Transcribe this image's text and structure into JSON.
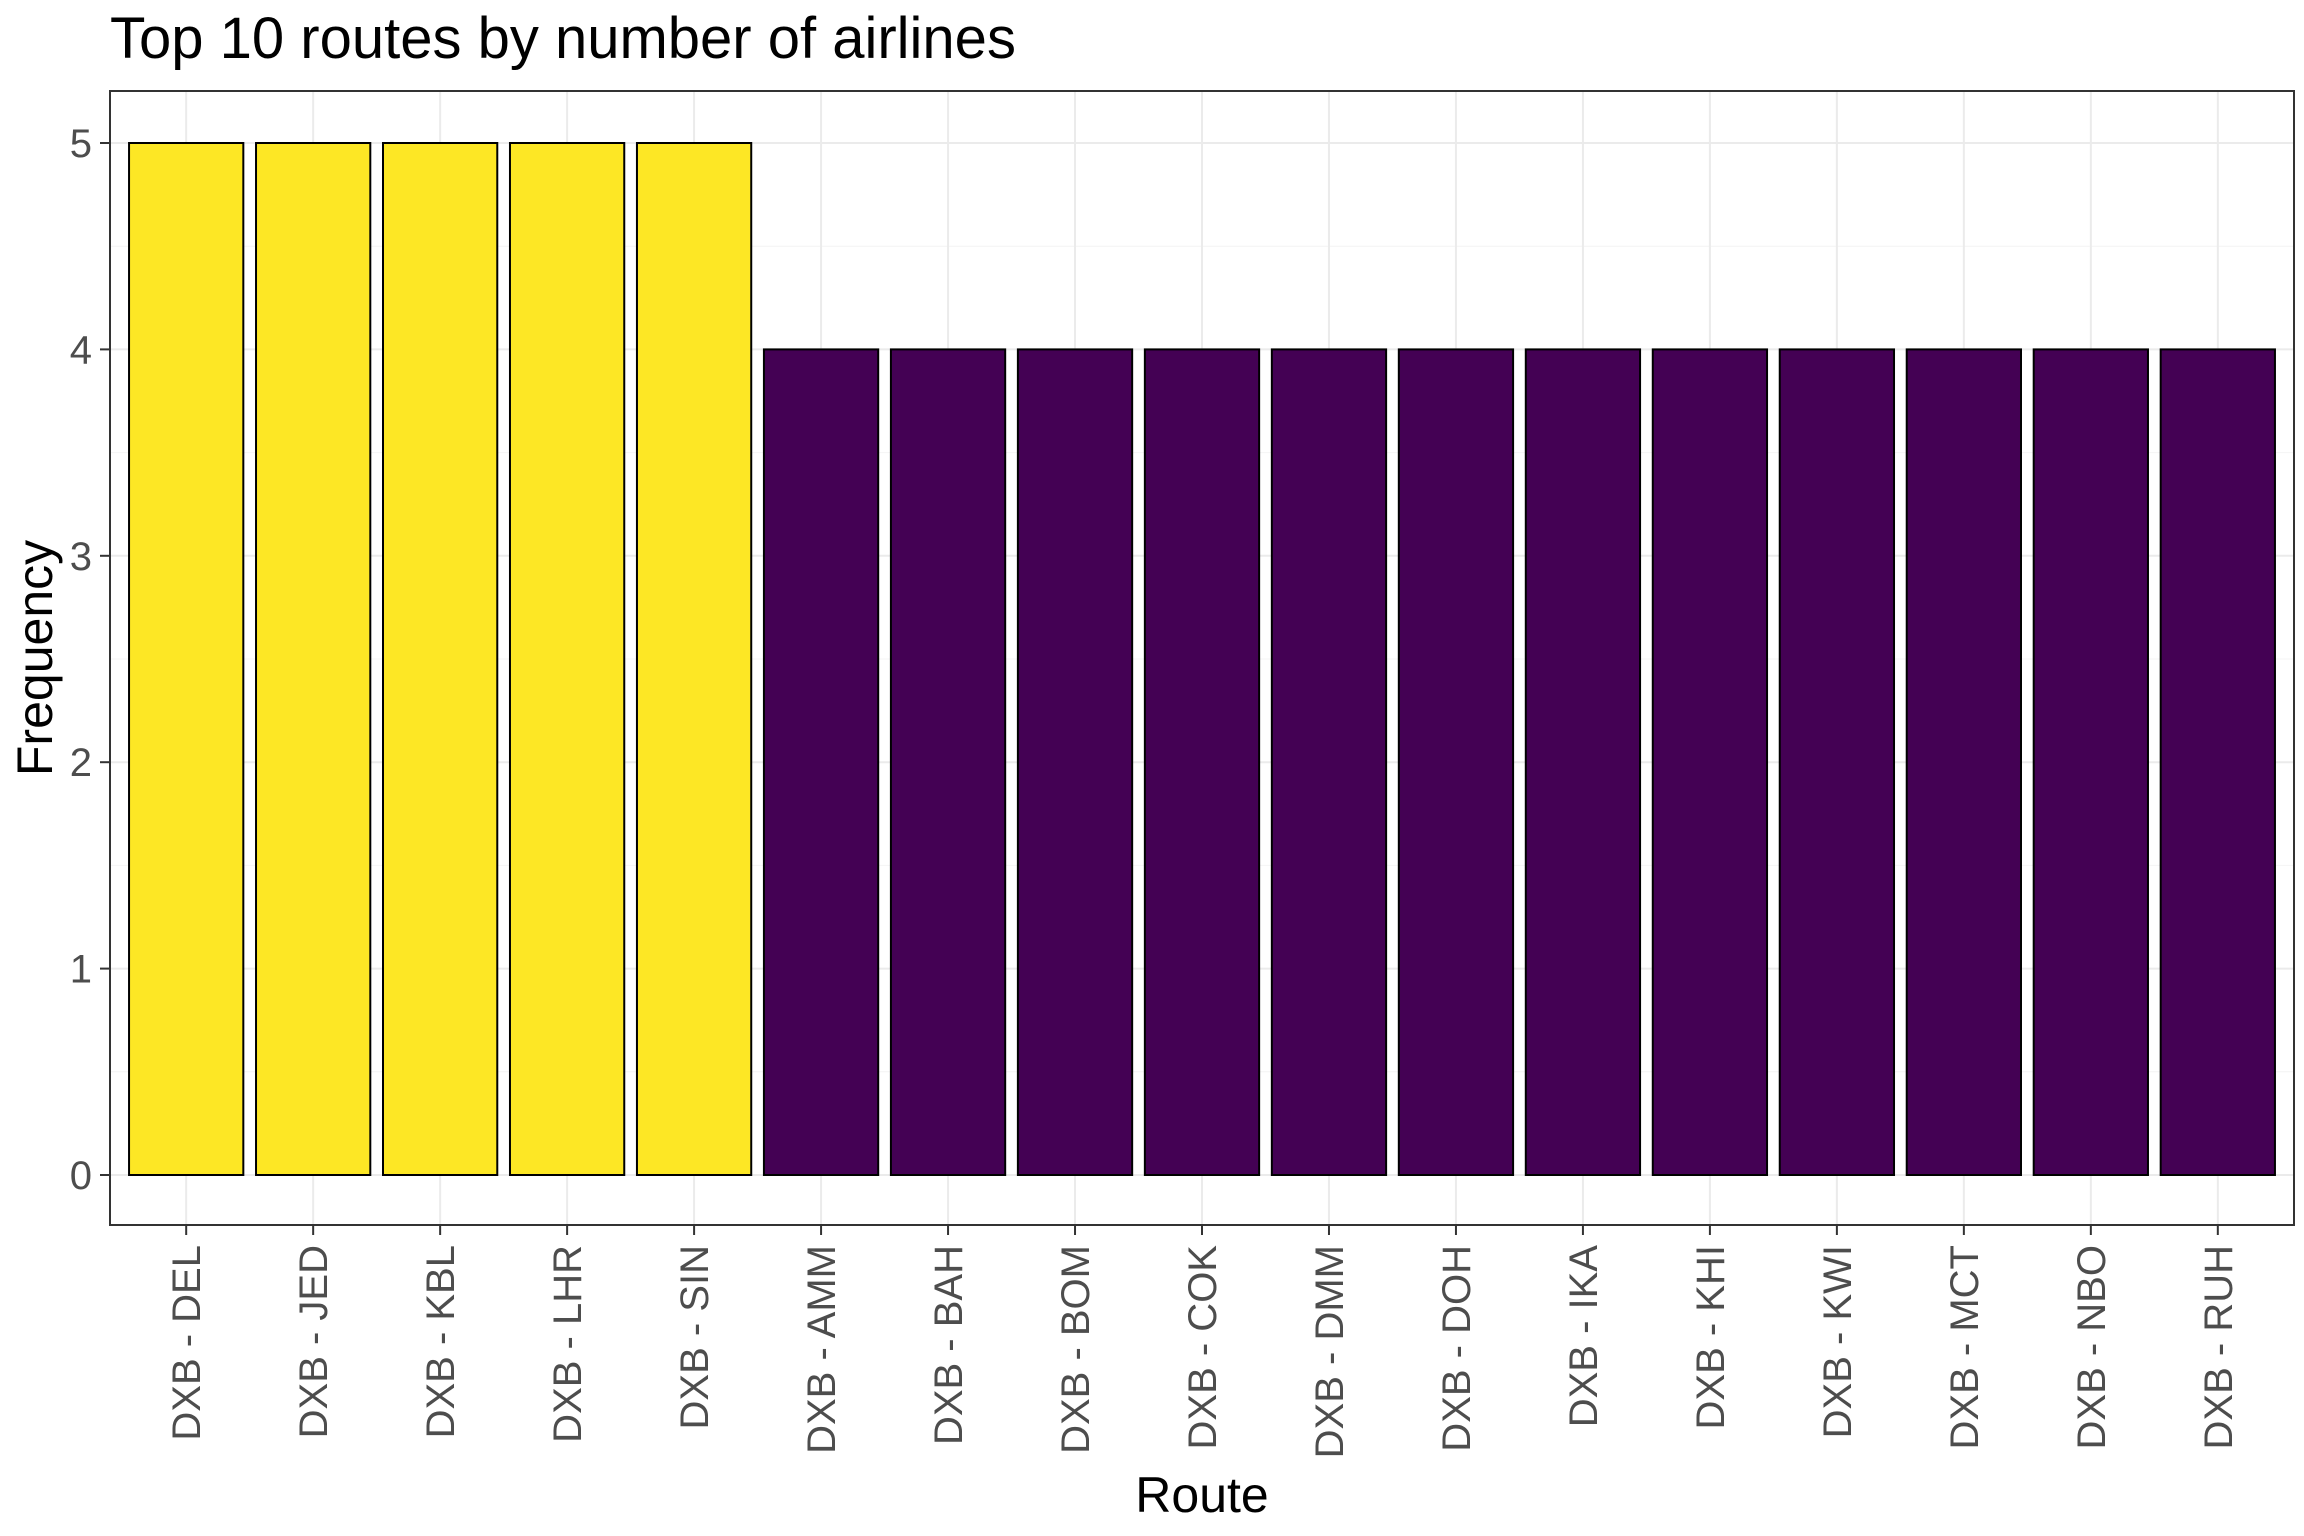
{
  "chart_data": {
    "type": "bar",
    "title": "Top 10 routes by number of airlines",
    "xlabel": "Route",
    "ylabel": "Frequency",
    "ylim": [
      0,
      5
    ],
    "yticks": [
      0,
      1,
      2,
      3,
      4,
      5
    ],
    "grid": true,
    "legend": "none",
    "categories": [
      "DXB - DEL",
      "DXB - JED",
      "DXB - KBL",
      "DXB - LHR",
      "DXB - SIN",
      "DXB - AMM",
      "DXB - BAH",
      "DXB - BOM",
      "DXB - COK",
      "DXB - DMM",
      "DXB - DOH",
      "DXB - IKA",
      "DXB - KHI",
      "DXB - KWI",
      "DXB - MCT",
      "DXB - NBO",
      "DXB - RUH"
    ],
    "values": [
      5,
      5,
      5,
      5,
      5,
      4,
      4,
      4,
      4,
      4,
      4,
      4,
      4,
      4,
      4,
      4,
      4
    ],
    "colors": {
      "top": "#FDE725",
      "other": "#440154",
      "bar_outline": "#000000",
      "panel_border": "#333333",
      "grid": "#EBEBEB"
    }
  }
}
